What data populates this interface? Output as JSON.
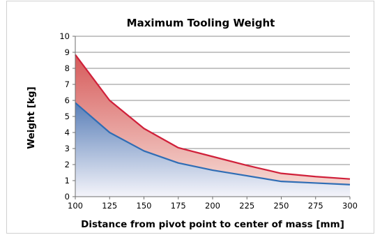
{
  "chart_data": {
    "type": "area",
    "title": "Maximum Tooling Weight",
    "xlabel": "Distance from pivot point to center of mass [mm]",
    "ylabel": "Weight [kg]",
    "x": [
      100,
      125,
      150,
      175,
      200,
      225,
      250,
      275,
      300
    ],
    "xlim": [
      100,
      300
    ],
    "ylim": [
      0,
      10
    ],
    "x_ticks": [
      "100",
      "125",
      "150",
      "175",
      "200",
      "225",
      "250",
      "275",
      "300"
    ],
    "y_ticks": [
      "0",
      "1",
      "2",
      "3",
      "4",
      "5",
      "6",
      "7",
      "8",
      "9",
      "10"
    ],
    "grid": true,
    "series": [
      {
        "values": [
          8.85,
          6.0,
          4.25,
          3.05,
          2.5,
          1.95,
          1.45,
          1.25,
          1.1
        ],
        "line_color": "#d0203a",
        "fill_color_top": "#d65a5a",
        "fill_color_bottom": "#f5d6d0"
      },
      {
        "values": [
          5.85,
          4.0,
          2.85,
          2.1,
          1.65,
          1.3,
          0.95,
          0.85,
          0.75
        ],
        "line_color": "#2f6db5",
        "fill_color_top": "#5a7fb8",
        "fill_color_bottom": "#f4f4fa"
      }
    ]
  }
}
